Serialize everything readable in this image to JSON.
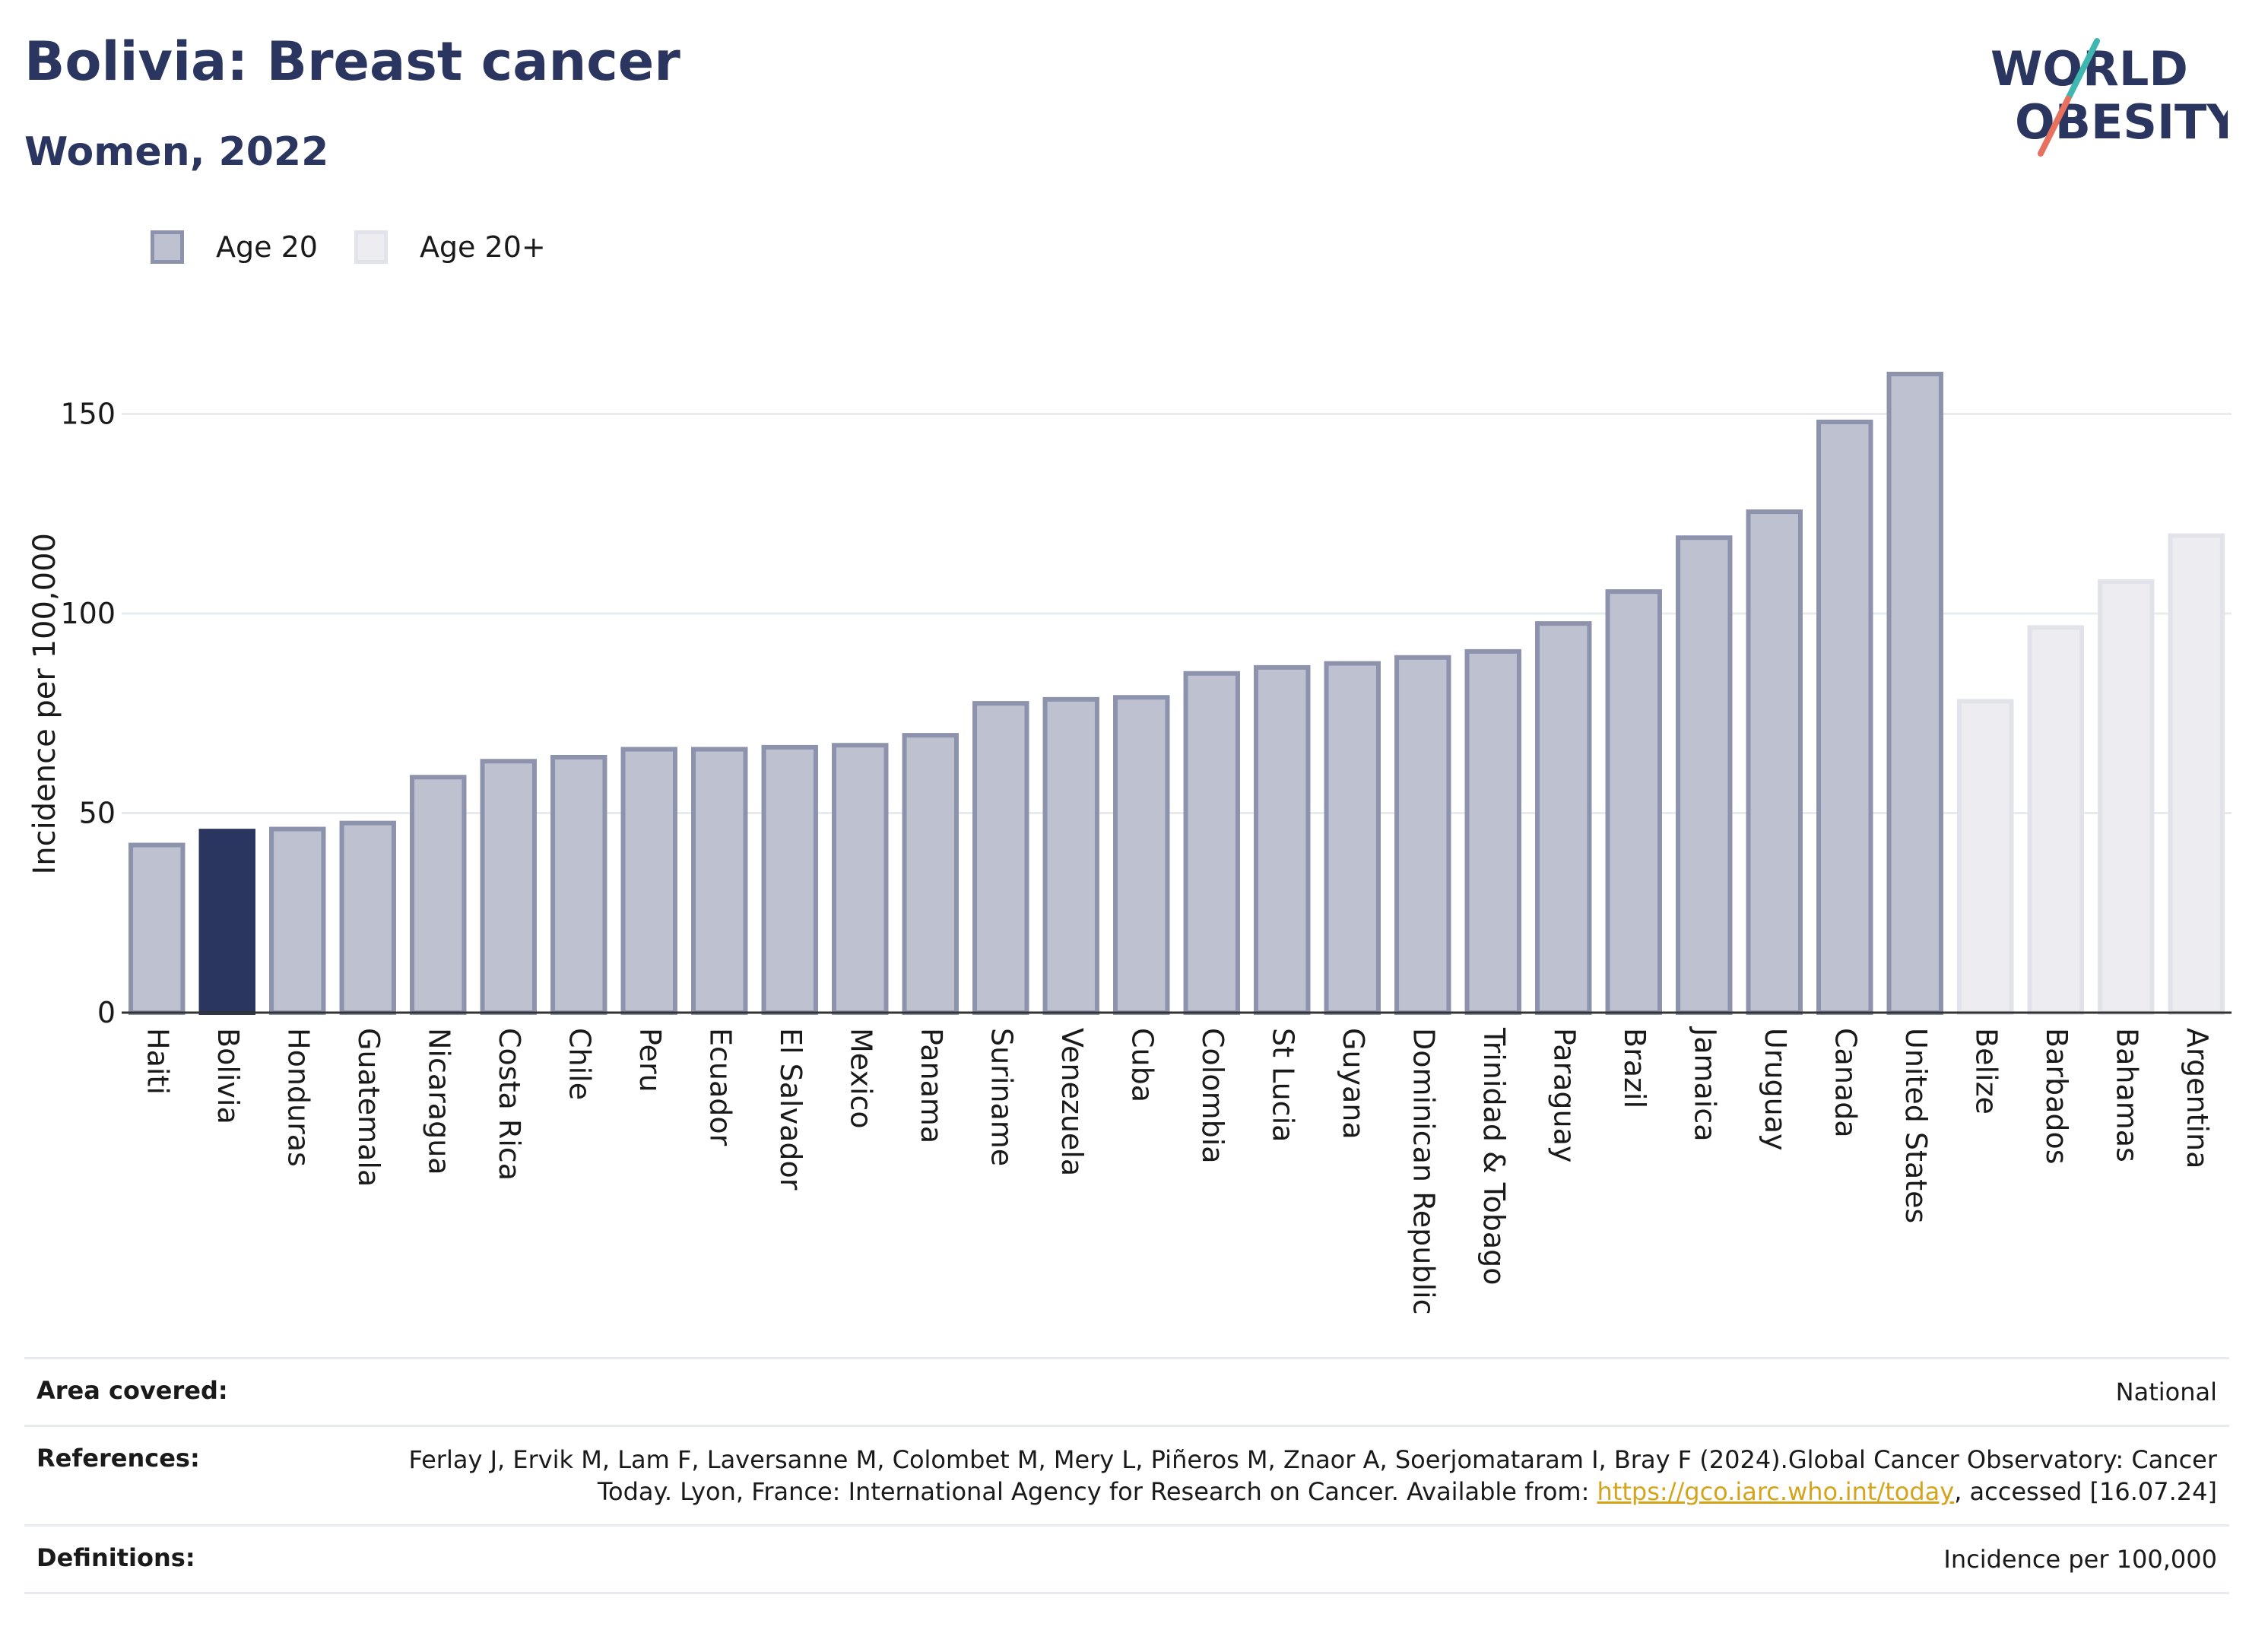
{
  "header": {
    "title": "Bolivia: Breast cancer",
    "subtitle": "Women, 2022"
  },
  "logo": {
    "line1": "WORLD",
    "line2": "OBESITY",
    "colors": {
      "text": "#2a3560",
      "teal": "#3fb6b0",
      "coral": "#e8705f"
    }
  },
  "legend": {
    "items": [
      {
        "label": "Age 20",
        "fill": "#bec1cf",
        "border": "#8d93ad"
      },
      {
        "label": "Age 20+",
        "fill": "#ededf1",
        "border": "#e2e3ea"
      }
    ]
  },
  "chart_data": {
    "type": "bar",
    "ylabel": "Incidence per 100,000",
    "ylim": [
      0,
      170
    ],
    "yticks": [
      0,
      50,
      100,
      150
    ],
    "grid": true,
    "legend_position": "top-left",
    "highlight": "Bolivia",
    "highlight_color": "#2a3560",
    "categories": [
      "Haiti",
      "Bolivia",
      "Honduras",
      "Guatemala",
      "Nicaragua",
      "Costa Rica",
      "Chile",
      "Peru",
      "Ecuador",
      "El Salvador",
      "Mexico",
      "Panama",
      "Suriname",
      "Venezuela",
      "Cuba",
      "Colombia",
      "St Lucia",
      "Guyana",
      "Dominican Republic",
      "Trinidad & Tobago",
      "Paraguay",
      "Brazil",
      "Jamaica",
      "Uruguay",
      "Canada",
      "United States",
      "Belize",
      "Barbados",
      "Bahamas",
      "Argentina"
    ],
    "values": [
      42,
      45.5,
      46,
      47.5,
      59,
      63,
      64,
      66,
      66,
      66.5,
      67,
      69.5,
      77.5,
      78.5,
      79,
      85,
      86.5,
      87.5,
      89,
      90.5,
      97.5,
      105.5,
      119,
      125.5,
      148,
      160,
      78,
      96.5,
      108,
      119.5
    ],
    "series_group": [
      "Age 20",
      "Age 20",
      "Age 20",
      "Age 20",
      "Age 20",
      "Age 20",
      "Age 20",
      "Age 20",
      "Age 20",
      "Age 20",
      "Age 20",
      "Age 20",
      "Age 20",
      "Age 20",
      "Age 20",
      "Age 20",
      "Age 20",
      "Age 20",
      "Age 20",
      "Age 20",
      "Age 20",
      "Age 20",
      "Age 20",
      "Age 20",
      "Age 20",
      "Age 20",
      "Age 20+",
      "Age 20+",
      "Age 20+",
      "Age 20+"
    ]
  },
  "info": {
    "area_key": "Area covered:",
    "area_val": "National",
    "ref_key": "References:",
    "ref_text1": "Ferlay J, Ervik M, Lam F, Laversanne M, Colombet M, Mery L, Piñeros M, Znaor A, Soerjomataram I, Bray F (2024).Global Cancer Observatory: Cancer Today. Lyon, France: International Agency for Research on Cancer. Available from: ",
    "ref_link": "https://gco.iarc.who.int/today",
    "ref_text2": ", accessed [16.07.24]",
    "def_key": "Definitions:",
    "def_val": "Incidence per 100,000"
  }
}
